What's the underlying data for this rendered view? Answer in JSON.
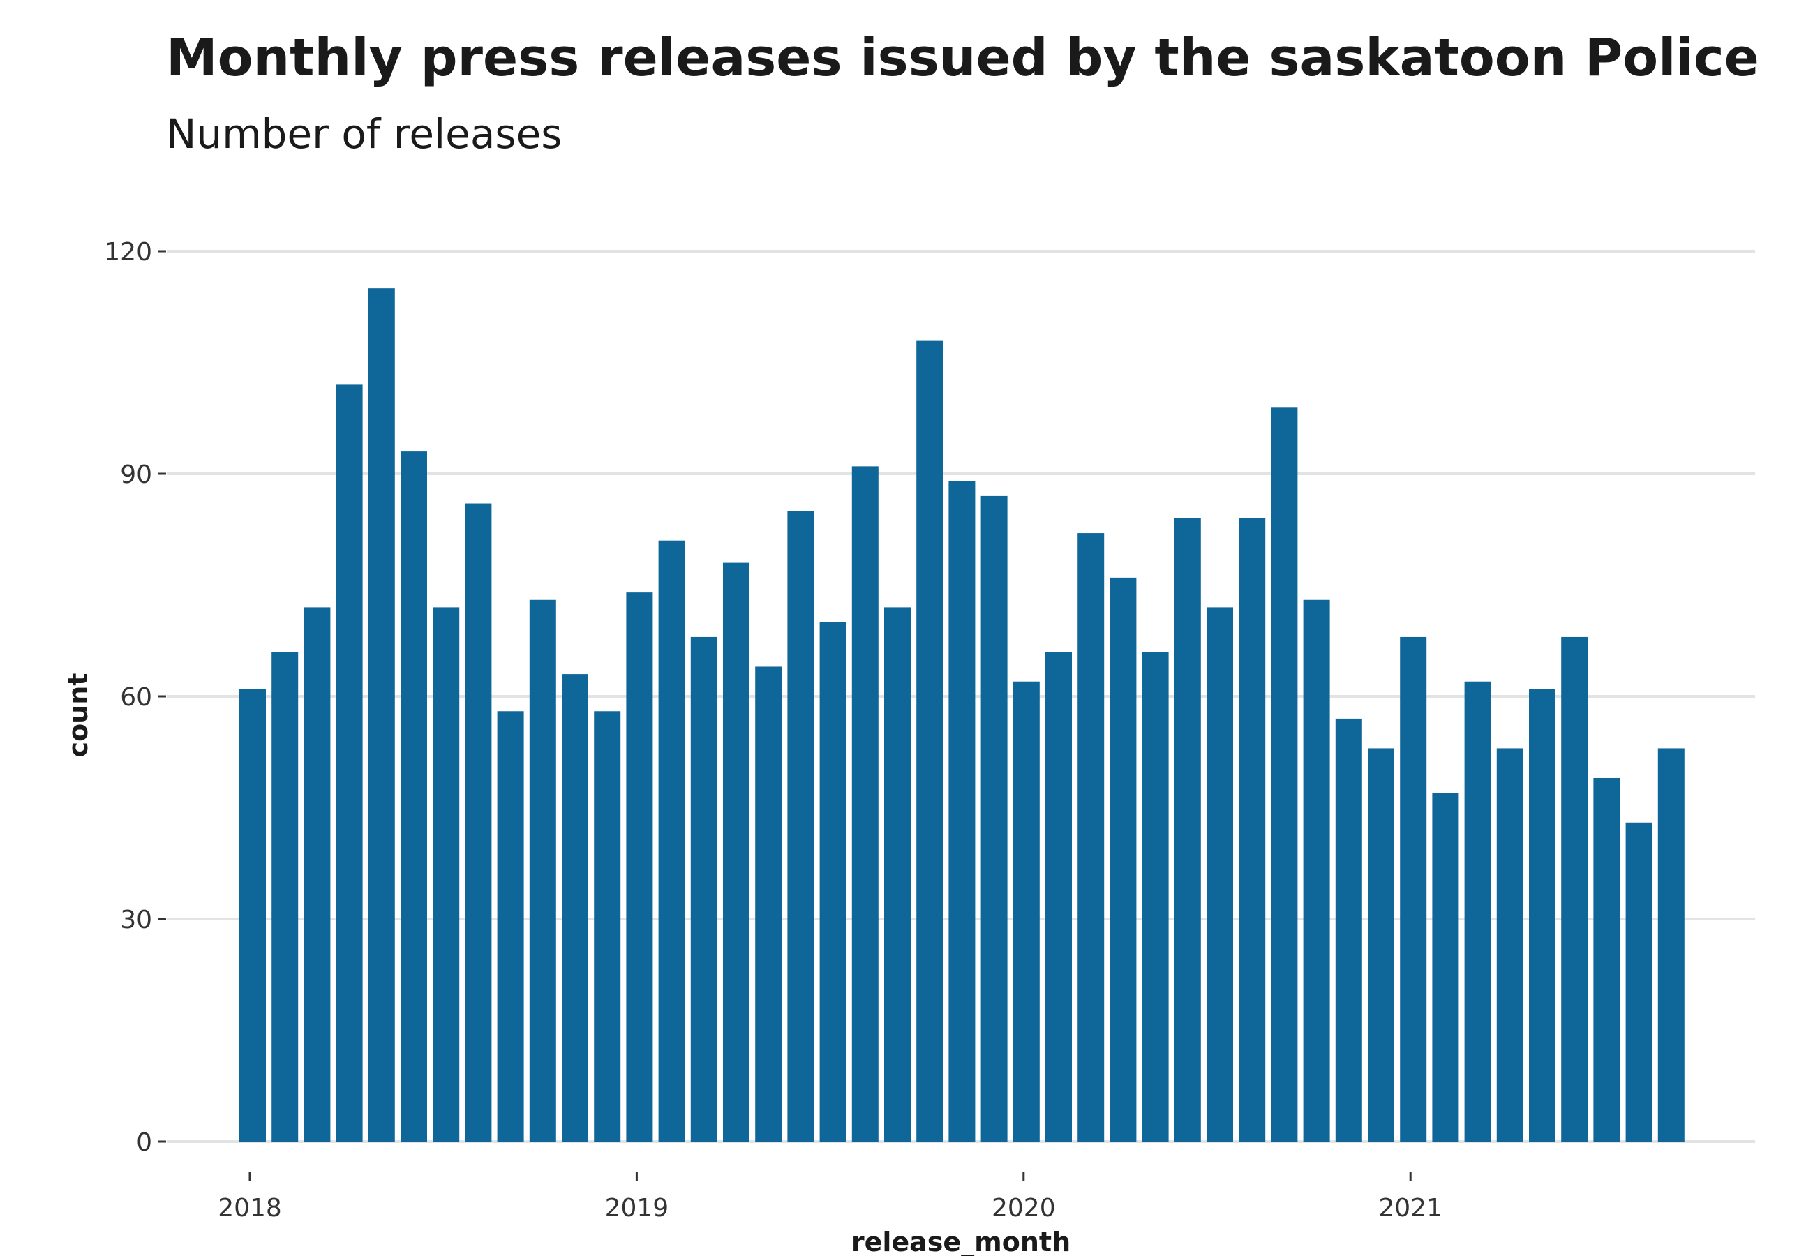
{
  "chart_data": {
    "type": "bar",
    "title": "Monthly press releases issued by the saskatoon Police",
    "subtitle": "Number of releases",
    "xlabel": "release_month",
    "ylabel": "count",
    "x_ticks": [
      "2018",
      "2019",
      "2020",
      "2021"
    ],
    "y_ticks": [
      0,
      30,
      60,
      90,
      120
    ],
    "ylim": [
      0,
      120
    ],
    "grid": "horizontal",
    "bar_color": "#0f6699",
    "x": [
      "2018-01",
      "2018-02",
      "2018-03",
      "2018-04",
      "2018-05",
      "2018-06",
      "2018-07",
      "2018-08",
      "2018-09",
      "2018-10",
      "2018-11",
      "2018-12",
      "2019-01",
      "2019-02",
      "2019-03",
      "2019-04",
      "2019-05",
      "2019-06",
      "2019-07",
      "2019-08",
      "2019-09",
      "2019-10",
      "2019-11",
      "2019-12",
      "2020-01",
      "2020-02",
      "2020-03",
      "2020-04",
      "2020-05",
      "2020-06",
      "2020-07",
      "2020-08",
      "2020-09",
      "2020-10",
      "2020-11",
      "2020-12",
      "2021-01",
      "2021-02",
      "2021-03",
      "2021-04",
      "2021-05",
      "2021-06",
      "2021-07",
      "2021-08",
      "2021-09"
    ],
    "values": [
      61,
      66,
      72,
      102,
      115,
      93,
      72,
      86,
      58,
      73,
      63,
      58,
      74,
      81,
      68,
      78,
      64,
      85,
      70,
      91,
      72,
      108,
      89,
      87,
      62,
      66,
      82,
      76,
      66,
      84,
      72,
      84,
      99,
      73,
      57,
      53,
      68,
      47,
      62,
      53,
      61,
      68,
      49,
      43,
      53
    ]
  }
}
